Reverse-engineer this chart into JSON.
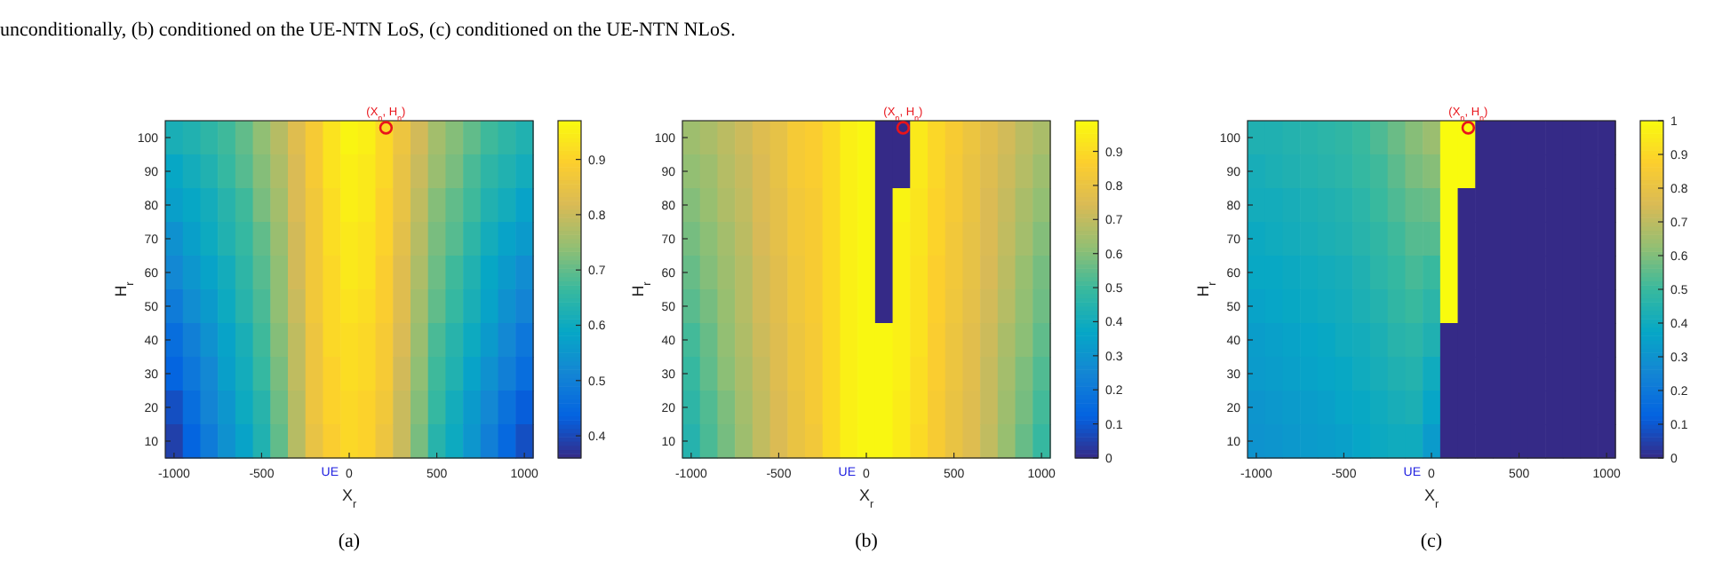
{
  "chart_data": [
    {
      "type": "heatmap",
      "title": "(a)",
      "xlabel": "X$_{r}$",
      "ylabel": "H$_{r}$",
      "categories": [
        "-1000",
        null,
        null,
        null,
        null,
        "-500",
        null,
        null,
        null,
        null,
        "0",
        null,
        null,
        null,
        null,
        "500",
        null,
        null,
        null,
        null,
        "1000"
      ],
      "y_categories": [
        "100",
        "90",
        "80",
        "70",
        "60",
        "50",
        "40",
        "30",
        "20",
        "10"
      ],
      "cells": [
        [
          0.62,
          0.63,
          0.65,
          0.67,
          0.7,
          0.74,
          0.78,
          0.83,
          0.88,
          0.93,
          0.96,
          0.95,
          0.91,
          0.86,
          0.81,
          0.76,
          0.73,
          0.7,
          0.67,
          0.65,
          0.63
        ],
        [
          0.59,
          0.61,
          0.63,
          0.66,
          0.69,
          0.73,
          0.77,
          0.82,
          0.88,
          0.93,
          0.95,
          0.94,
          0.91,
          0.85,
          0.8,
          0.75,
          0.72,
          0.68,
          0.65,
          0.63,
          0.61
        ],
        [
          0.57,
          0.59,
          0.61,
          0.64,
          0.67,
          0.72,
          0.76,
          0.82,
          0.87,
          0.92,
          0.95,
          0.94,
          0.9,
          0.85,
          0.79,
          0.73,
          0.7,
          0.67,
          0.63,
          0.61,
          0.58
        ],
        [
          0.54,
          0.57,
          0.6,
          0.63,
          0.66,
          0.7,
          0.75,
          0.81,
          0.87,
          0.92,
          0.94,
          0.93,
          0.9,
          0.84,
          0.78,
          0.72,
          0.69,
          0.65,
          0.61,
          0.58,
          0.56
        ],
        [
          0.52,
          0.55,
          0.58,
          0.61,
          0.65,
          0.69,
          0.74,
          0.81,
          0.87,
          0.91,
          0.94,
          0.93,
          0.89,
          0.83,
          0.77,
          0.71,
          0.67,
          0.63,
          0.59,
          0.56,
          0.53
        ],
        [
          0.49,
          0.53,
          0.56,
          0.6,
          0.64,
          0.68,
          0.74,
          0.8,
          0.87,
          0.91,
          0.93,
          0.92,
          0.89,
          0.83,
          0.76,
          0.7,
          0.66,
          0.62,
          0.58,
          0.54,
          0.51
        ],
        [
          0.46,
          0.5,
          0.54,
          0.58,
          0.62,
          0.67,
          0.73,
          0.79,
          0.86,
          0.91,
          0.92,
          0.91,
          0.88,
          0.82,
          0.75,
          0.68,
          0.64,
          0.6,
          0.56,
          0.52,
          0.48
        ],
        [
          0.44,
          0.48,
          0.52,
          0.57,
          0.61,
          0.66,
          0.72,
          0.79,
          0.86,
          0.9,
          0.92,
          0.91,
          0.88,
          0.81,
          0.74,
          0.67,
          0.63,
          0.58,
          0.54,
          0.5,
          0.46
        ],
        [
          0.41,
          0.46,
          0.51,
          0.55,
          0.6,
          0.64,
          0.71,
          0.78,
          0.86,
          0.9,
          0.91,
          0.9,
          0.87,
          0.8,
          0.73,
          0.66,
          0.61,
          0.56,
          0.52,
          0.47,
          0.43
        ],
        [
          0.39,
          0.44,
          0.49,
          0.54,
          0.58,
          0.63,
          0.7,
          0.78,
          0.85,
          0.89,
          0.91,
          0.9,
          0.86,
          0.8,
          0.72,
          0.64,
          0.6,
          0.55,
          0.5,
          0.45,
          0.41
        ]
      ],
      "clim": [
        0.36,
        0.97
      ],
      "cticks": [
        0.4,
        0.5,
        0.6,
        0.7,
        0.8,
        0.9
      ],
      "annotations": [
        "(X$_{n}$, H$_{n}$)",
        "UE",
        "unconditionally, (b) conditioned on the UE-NTN LoS, (c) conditioned on the UE-NTN NLoS."
      ]
    },
    {
      "type": "heatmap",
      "title": "(b)",
      "xlabel": "X$_{r}$",
      "ylabel": "H$_{r}$",
      "categories": [
        "-1000",
        null,
        null,
        null,
        null,
        "-500",
        null,
        null,
        null,
        null,
        "0",
        null,
        null,
        null,
        null,
        "500",
        null,
        null,
        null,
        null,
        "1000"
      ],
      "y_categories": [
        "100",
        "90",
        "80",
        "70",
        "60",
        "50",
        "40",
        "30",
        "20",
        "10"
      ],
      "cells": [
        [
          0.64,
          0.66,
          0.69,
          0.72,
          0.76,
          0.79,
          0.84,
          0.86,
          0.9,
          0.96,
          0.98,
          0,
          0,
          0.94,
          0.89,
          0.85,
          0.81,
          0.77,
          0.73,
          0.69,
          0.66
        ],
        [
          0.62,
          0.64,
          0.68,
          0.71,
          0.75,
          0.79,
          0.84,
          0.86,
          0.9,
          0.96,
          0.98,
          0,
          0,
          0.94,
          0.89,
          0.84,
          0.8,
          0.76,
          0.72,
          0.68,
          0.64
        ],
        [
          0.6,
          0.63,
          0.67,
          0.7,
          0.75,
          0.78,
          0.83,
          0.85,
          0.9,
          0.96,
          0.98,
          0,
          0.97,
          0.93,
          0.88,
          0.84,
          0.8,
          0.75,
          0.71,
          0.66,
          0.62
        ],
        [
          0.58,
          0.61,
          0.65,
          0.69,
          0.74,
          0.78,
          0.83,
          0.85,
          0.9,
          0.96,
          0.98,
          0,
          0.96,
          0.93,
          0.88,
          0.83,
          0.79,
          0.75,
          0.7,
          0.65,
          0.6
        ],
        [
          0.56,
          0.6,
          0.64,
          0.68,
          0.73,
          0.77,
          0.82,
          0.85,
          0.9,
          0.96,
          0.98,
          0,
          0.96,
          0.92,
          0.87,
          0.83,
          0.79,
          0.74,
          0.69,
          0.63,
          0.58
        ],
        [
          0.54,
          0.58,
          0.63,
          0.68,
          0.73,
          0.77,
          0.82,
          0.85,
          0.9,
          0.96,
          0.98,
          0,
          0.96,
          0.92,
          0.87,
          0.82,
          0.78,
          0.73,
          0.68,
          0.62,
          0.57
        ],
        [
          0.51,
          0.56,
          0.62,
          0.67,
          0.72,
          0.76,
          0.81,
          0.84,
          0.9,
          0.96,
          0.98,
          0.98,
          0.96,
          0.92,
          0.86,
          0.81,
          0.77,
          0.72,
          0.66,
          0.61,
          0.55
        ],
        [
          0.49,
          0.55,
          0.61,
          0.66,
          0.71,
          0.76,
          0.81,
          0.84,
          0.9,
          0.96,
          0.98,
          0.98,
          0.96,
          0.91,
          0.86,
          0.81,
          0.77,
          0.71,
          0.65,
          0.59,
          0.53
        ],
        [
          0.47,
          0.53,
          0.59,
          0.65,
          0.7,
          0.75,
          0.8,
          0.84,
          0.9,
          0.96,
          0.98,
          0.98,
          0.95,
          0.91,
          0.85,
          0.8,
          0.76,
          0.71,
          0.64,
          0.58,
          0.51
        ],
        [
          0.45,
          0.52,
          0.58,
          0.64,
          0.7,
          0.75,
          0.8,
          0.83,
          0.9,
          0.96,
          0.98,
          0.98,
          0.95,
          0.9,
          0.85,
          0.8,
          0.76,
          0.7,
          0.63,
          0.56,
          0.49
        ]
      ],
      "clim": [
        0,
        0.99
      ],
      "cticks": [
        0,
        0.1,
        0.2,
        0.3,
        0.4,
        0.5,
        0.6,
        0.7,
        0.8,
        0.9
      ],
      "annotations": [
        "(X$_{n}$, H$_{n}$)",
        "UE"
      ]
    },
    {
      "type": "heatmap",
      "title": "(c)",
      "xlabel": "X$_{r}$",
      "ylabel": "H$_{r}$",
      "categories": [
        "-1000",
        null,
        null,
        null,
        null,
        "-500",
        null,
        null,
        null,
        null,
        "0",
        null,
        null,
        null,
        null,
        "500",
        null,
        null,
        null,
        null,
        "1000"
      ],
      "y_categories": [
        "100",
        "90",
        "80",
        "70",
        "60",
        "50",
        "40",
        "30",
        "20",
        "10"
      ],
      "cells": [
        [
          0.44,
          0.44,
          0.45,
          0.46,
          0.47,
          0.48,
          0.5,
          0.53,
          0.57,
          0.61,
          0.64,
          1,
          1,
          0,
          0,
          0,
          0,
          0,
          0,
          0,
          0
        ],
        [
          0.42,
          0.43,
          0.44,
          0.45,
          0.46,
          0.47,
          0.49,
          0.51,
          0.55,
          0.59,
          0.61,
          1,
          1,
          0,
          0,
          0,
          0,
          0,
          0,
          0,
          0
        ],
        [
          0.41,
          0.41,
          0.42,
          0.43,
          0.44,
          0.45,
          0.47,
          0.5,
          0.53,
          0.56,
          0.57,
          1,
          0,
          0,
          0,
          0,
          0,
          0,
          0,
          0,
          0
        ],
        [
          0.39,
          0.4,
          0.41,
          0.42,
          0.43,
          0.44,
          0.46,
          0.48,
          0.51,
          0.54,
          0.54,
          1,
          0,
          0,
          0,
          0,
          0,
          0,
          0,
          0,
          0
        ],
        [
          0.38,
          0.38,
          0.39,
          0.4,
          0.41,
          0.42,
          0.44,
          0.47,
          0.49,
          0.52,
          0.5,
          1,
          0,
          0,
          0,
          0,
          0,
          0,
          0,
          0,
          0
        ],
        [
          0.36,
          0.37,
          0.38,
          0.39,
          0.4,
          0.41,
          0.43,
          0.45,
          0.48,
          0.5,
          0.47,
          1,
          0,
          0,
          0,
          0,
          0,
          0,
          0,
          0,
          0
        ],
        [
          0.34,
          0.35,
          0.36,
          0.37,
          0.38,
          0.4,
          0.41,
          0.43,
          0.46,
          0.47,
          0.44,
          0,
          0,
          0,
          0,
          0,
          0,
          0,
          0,
          0,
          0
        ],
        [
          0.33,
          0.34,
          0.35,
          0.36,
          0.37,
          0.38,
          0.4,
          0.42,
          0.44,
          0.45,
          0.4,
          0,
          0,
          0,
          0,
          0,
          0,
          0,
          0,
          0,
          0
        ],
        [
          0.31,
          0.32,
          0.33,
          0.34,
          0.35,
          0.37,
          0.38,
          0.4,
          0.42,
          0.43,
          0.37,
          0,
          0,
          0,
          0,
          0,
          0,
          0,
          0,
          0,
          0
        ],
        [
          0.3,
          0.31,
          0.32,
          0.33,
          0.34,
          0.35,
          0.37,
          0.39,
          0.4,
          0.4,
          0.33,
          0,
          0,
          0,
          0,
          0,
          0,
          0,
          0,
          0,
          0
        ]
      ],
      "clim": [
        0,
        1
      ],
      "cticks": [
        0,
        0.1,
        0.2,
        0.3,
        0.4,
        0.5,
        0.6,
        0.7,
        0.8,
        0.9,
        1
      ],
      "annotations": [
        "(X$_{n}$, H$_{n}$)",
        "UE"
      ]
    }
  ]
}
